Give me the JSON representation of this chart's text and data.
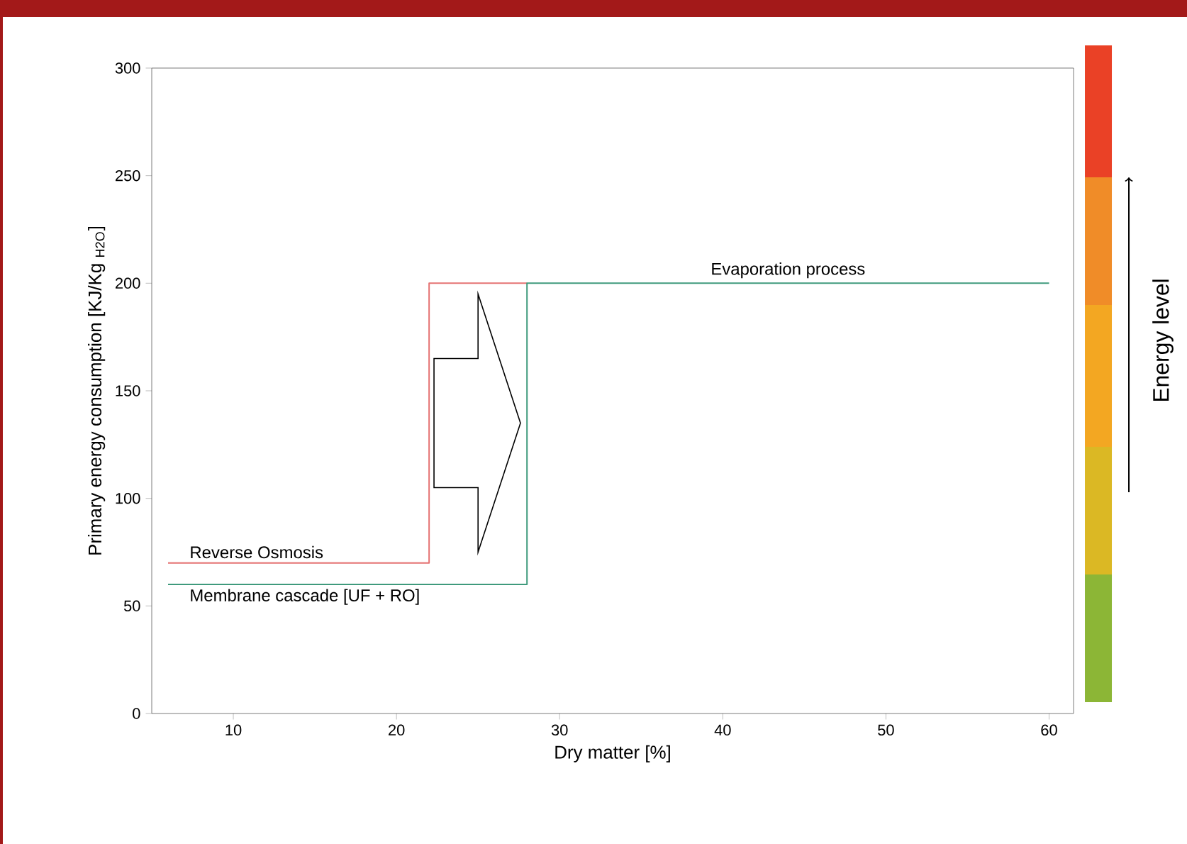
{
  "chart_data": {
    "type": "line",
    "xlabel": "Dry matter [%]",
    "ylabel": "Primary energy consumption [KJ/Kg $_{H2O}$]",
    "xlim": [
      5,
      61.5
    ],
    "xticks": [
      10,
      20,
      30,
      40,
      50,
      60
    ],
    "ylim": [
      0,
      300
    ],
    "yticks": [
      0,
      50,
      100,
      150,
      200,
      250,
      300
    ],
    "series": [
      {
        "name": "Reverse Osmosis",
        "color": "#e57373",
        "x": [
          6,
          22,
          22,
          28
        ],
        "values": [
          70,
          70,
          200,
          200
        ]
      },
      {
        "name": "Membrane cascade [UF + RO]",
        "color": "#3f9a7c",
        "x": [
          6,
          28,
          28,
          60
        ],
        "values": [
          60,
          60,
          200,
          200
        ]
      }
    ],
    "annotations": [
      {
        "text": "Evaporation process",
        "x": 44,
        "y": 200
      },
      "Energy level"
    ]
  }
}
